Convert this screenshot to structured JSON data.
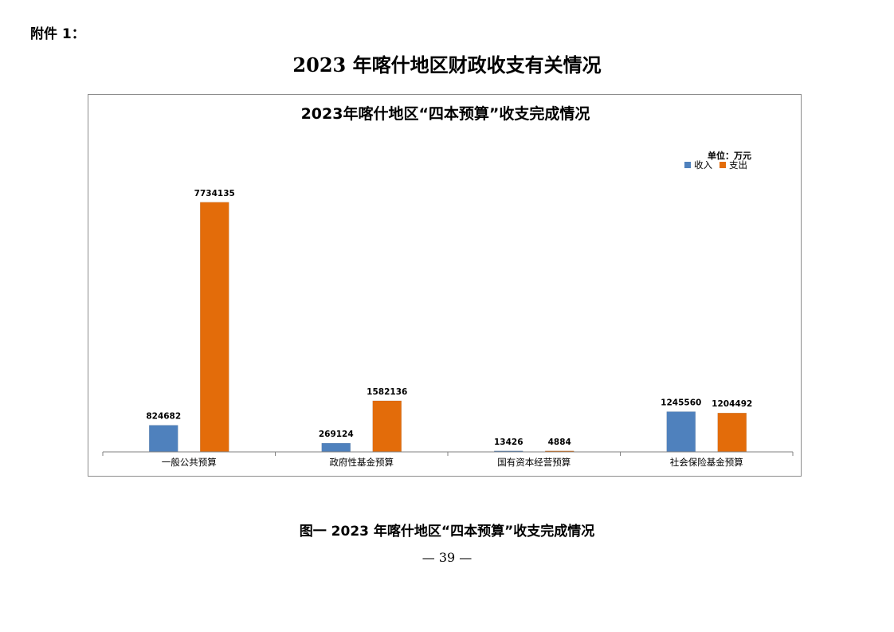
{
  "page": {
    "attachment_label": "附件 1：",
    "title": "2023 年喀什地区财政收支有关情况",
    "caption": "图一  2023 年喀什地区“四本预算”收支完成情况",
    "page_number": "— 39 —"
  },
  "chart_data": {
    "type": "bar",
    "title": "2023年喀什地区“四本预算”收支完成情况",
    "unit_label": "单位：万元",
    "categories": [
      "一般公共预算",
      "政府性基金预算",
      "国有资本经营预算",
      "社会保险基金预算"
    ],
    "series": [
      {
        "name": "收入",
        "color": "#4f81bd",
        "values": [
          824682,
          269124,
          13426,
          1245560
        ]
      },
      {
        "name": "支出",
        "color": "#e36c0a",
        "values": [
          7734135,
          1582136,
          4884,
          1204492
        ]
      }
    ],
    "ylim": [
      0,
      8000000
    ],
    "grid": false,
    "legend_position": "top-right",
    "data_labels": true
  }
}
